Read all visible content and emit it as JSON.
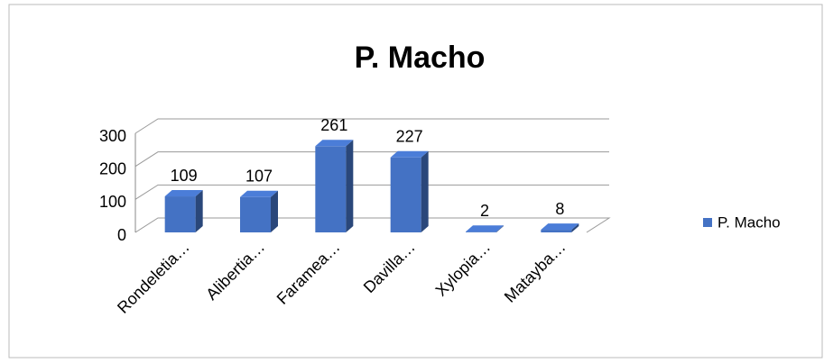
{
  "chart_data": {
    "type": "bar3d",
    "title": "P. Macho",
    "categories": [
      "Rondeletia…",
      "Alibertia…",
      "Faramea…",
      "Davilla…",
      "Xylopia…",
      "Matayba…"
    ],
    "series": [
      {
        "name": "P. Macho",
        "color": "#4472c4",
        "values": [
          109,
          107,
          261,
          227,
          2,
          8
        ]
      }
    ],
    "ylim": [
      0,
      300
    ],
    "yticks": [
      0,
      100,
      200,
      300
    ],
    "grid": true,
    "legend": "right"
  }
}
